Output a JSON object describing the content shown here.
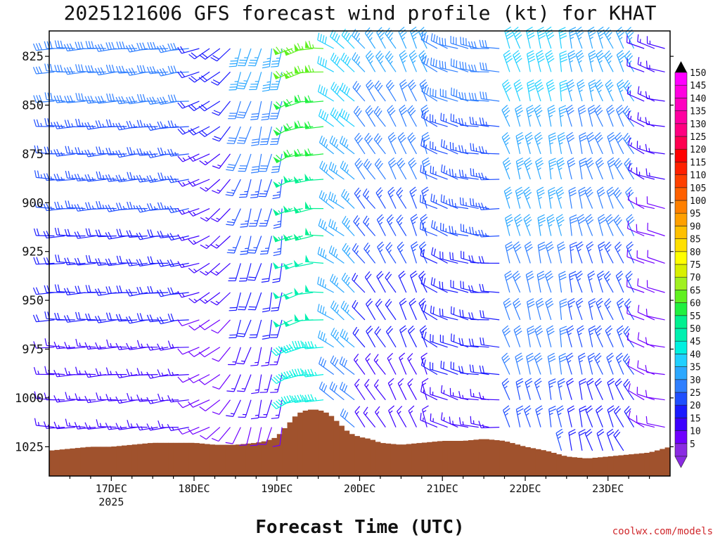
{
  "chart_data": {
    "type": "wind-barb-profile",
    "title": "2025121606 GFS forecast wind profile (kt) for KHAT",
    "xlabel": "Forecast Time (UTC)",
    "ylabel": "",
    "credit": "coolwx.com/models",
    "y_unit": "hPa",
    "ylim": [
      1040,
      812
    ],
    "y_ticks": [
      825,
      850,
      875,
      900,
      925,
      950,
      975,
      1000,
      1025
    ],
    "x_range_hours": [
      0,
      180
    ],
    "x_ticks": [
      {
        "label": "17DEC",
        "sub": "2025",
        "hour": 18
      },
      {
        "label": "18DEC",
        "sub": "",
        "hour": 42
      },
      {
        "label": "19DEC",
        "sub": "",
        "hour": 66
      },
      {
        "label": "20DEC",
        "sub": "",
        "hour": 90
      },
      {
        "label": "21DEC",
        "sub": "",
        "hour": 114
      },
      {
        "label": "22DEC",
        "sub": "",
        "hour": 138
      },
      {
        "label": "23DEC",
        "sub": "",
        "hour": 162
      }
    ],
    "barb_levels": [
      821,
      833,
      848,
      861,
      875,
      888,
      903,
      917,
      931,
      946,
      960,
      974,
      988,
      1001,
      1015,
      1027
    ],
    "surface_pressure": {
      "hours": [
        0,
        6,
        12,
        18,
        24,
        30,
        36,
        42,
        48,
        54,
        60,
        63,
        66,
        69,
        72,
        75,
        78,
        81,
        84,
        87,
        90,
        93,
        96,
        102,
        108,
        114,
        120,
        126,
        132,
        138,
        144,
        150,
        156,
        162,
        168,
        174,
        180
      ],
      "values": [
        1027,
        1026,
        1025,
        1025,
        1024,
        1023,
        1023,
        1023,
        1024,
        1024,
        1023,
        1022,
        1020,
        1014,
        1008,
        1006,
        1006,
        1008,
        1013,
        1018,
        1020,
        1021,
        1023,
        1024,
        1023,
        1022,
        1022,
        1021,
        1022,
        1025,
        1027,
        1030,
        1031,
        1030,
        1029,
        1028,
        1025
      ]
    },
    "wind_segments": [
      {
        "hours": [
          0,
          42
        ],
        "dir_start": 270,
        "dir_end": 262,
        "speed_top": 30,
        "speed_bottom": 12
      },
      {
        "hours": [
          42,
          55
        ],
        "dir_start": 255,
        "dir_end": 215,
        "speed_top": 20,
        "speed_bottom": 8
      },
      {
        "hours": [
          55,
          68
        ],
        "dir_start": 200,
        "dir_end": 190,
        "speed_top": 35,
        "speed_bottom": 10
      },
      {
        "hours": [
          68,
          80
        ],
        "dir_start": 240,
        "dir_end": 270,
        "speed_top": 65,
        "speed_bottom": 40
      },
      {
        "hours": [
          80,
          90
        ],
        "dir_start": 300,
        "dir_end": 315,
        "speed_top": 40,
        "speed_bottom": 30
      },
      {
        "hours": [
          90,
          110
        ],
        "dir_start": 320,
        "dir_end": 340,
        "speed_top": 35,
        "speed_bottom": 12
      },
      {
        "hours": [
          110,
          132
        ],
        "dir_start": 300,
        "dir_end": 270,
        "speed_top": 30,
        "speed_bottom": 15
      },
      {
        "hours": [
          132,
          150
        ],
        "dir_start": 340,
        "dir_end": 350,
        "speed_top": 40,
        "speed_bottom": 25
      },
      {
        "hours": [
          150,
          170
        ],
        "dir_start": 350,
        "dir_end": 330,
        "speed_top": 35,
        "speed_bottom": 20
      },
      {
        "hours": [
          170,
          180
        ],
        "dir_start": 300,
        "dir_end": 280,
        "speed_top": 15,
        "speed_bottom": 8
      }
    ],
    "colorbar": {
      "labels": [
        "5",
        "10",
        "15",
        "20",
        "25",
        "30",
        "35",
        "40",
        "45",
        "50",
        "55",
        "60",
        "65",
        "70",
        "75",
        "80",
        "85",
        "90",
        "95",
        "100",
        "105",
        "110",
        "115",
        "120",
        "125",
        "130",
        "135",
        "140",
        "145",
        "150"
      ],
      "colors": [
        "#8a2be2",
        "#7000ff",
        "#3c00ff",
        "#1a1aff",
        "#1f4fff",
        "#2f7fff",
        "#2ca8ff",
        "#20d0ff",
        "#00f0e0",
        "#00f0b0",
        "#00f090",
        "#20f040",
        "#60f020",
        "#a0f020",
        "#d8f000",
        "#ffff00",
        "#ffe000",
        "#ffc000",
        "#ffa000",
        "#ff8000",
        "#ff6000",
        "#ff4000",
        "#ff2000",
        "#ff0000",
        "#ff0050",
        "#ff0080",
        "#ff00a0",
        "#ff00c0",
        "#ff00e0",
        "#ff00ff"
      ]
    }
  }
}
